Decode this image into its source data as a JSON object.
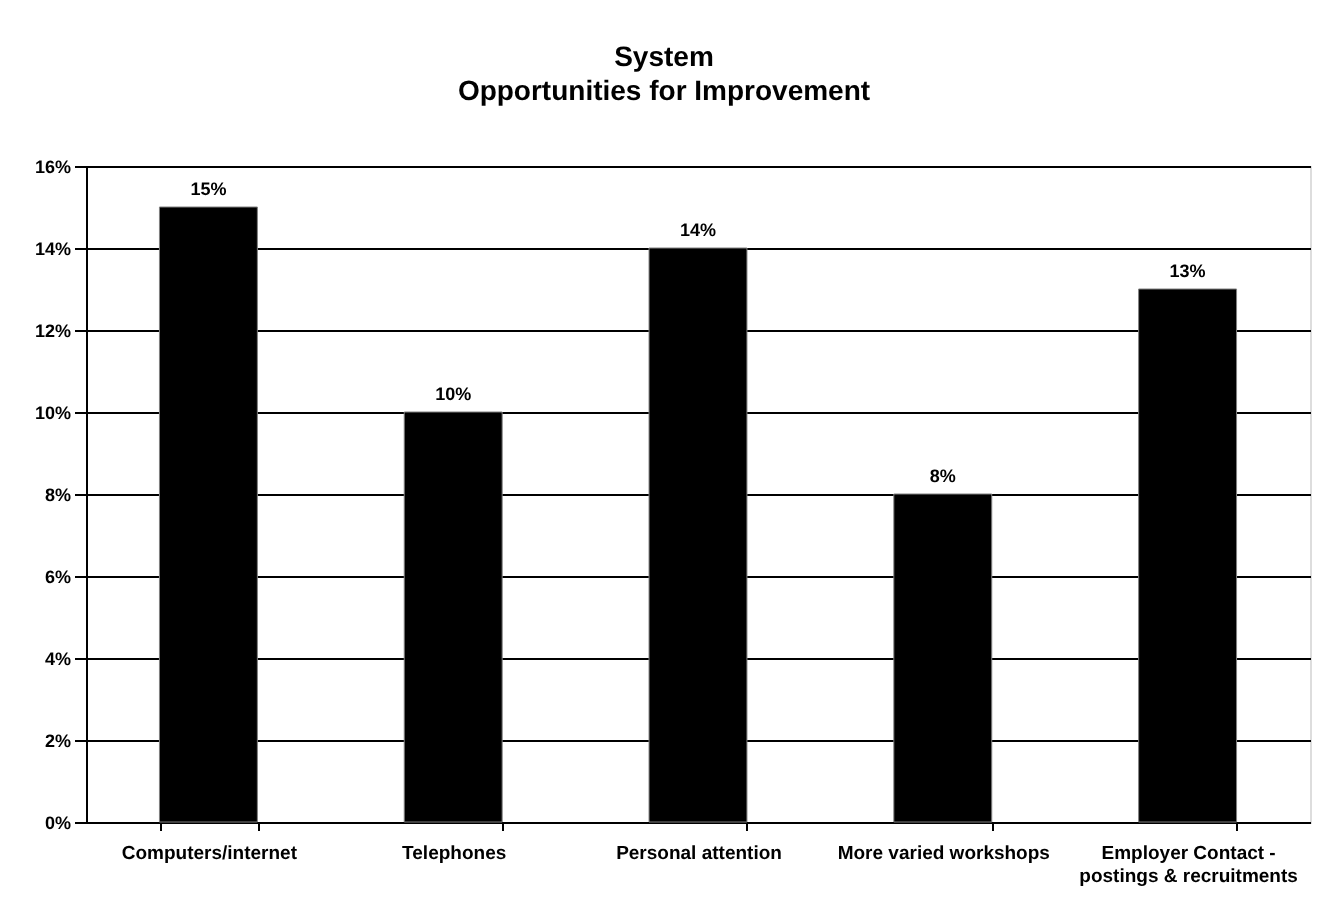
{
  "chart_data": {
    "type": "bar",
    "title": "System",
    "subtitle": "Opportunities for Improvement",
    "categories": [
      "Computers/internet",
      "Telephones",
      "Personal attention",
      "More varied workshops",
      "Employer Contact - postings & recruitments"
    ],
    "values": [
      15,
      10,
      14,
      8,
      13
    ],
    "color": "#000000",
    "value_labels": [
      "15%",
      "10%",
      "14%",
      "8%",
      "13%"
    ],
    "ylim": [
      0,
      16
    ],
    "yticks": [
      {
        "value": 0,
        "label": "0%"
      },
      {
        "value": 2,
        "label": "2%"
      },
      {
        "value": 4,
        "label": "4%"
      },
      {
        "value": 6,
        "label": "6%"
      },
      {
        "value": 8,
        "label": "8%"
      },
      {
        "value": 10,
        "label": "10%"
      },
      {
        "value": 12,
        "label": "12%"
      },
      {
        "value": 14,
        "label": "14%"
      },
      {
        "value": 16,
        "label": "16%"
      }
    ],
    "grid": "y"
  }
}
